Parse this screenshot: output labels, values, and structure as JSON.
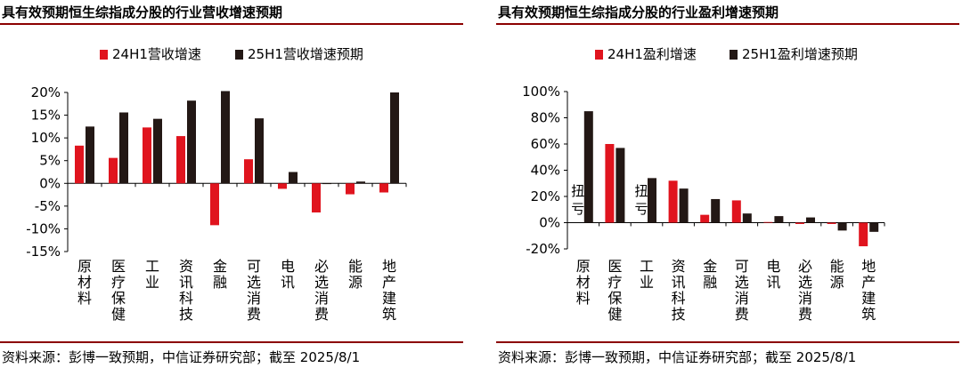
{
  "colors": {
    "h1_24": "#e0141e",
    "h1_25": "#231815",
    "rule": "#8b0000"
  },
  "left": {
    "title": "具有效预期恒生综指成分股的行业营收增速预期",
    "source": "资料来源：彭博一致预期，中信证券研究部；截至 2025/8/1"
  },
  "right": {
    "title": "具有效预期恒生综指成分股的行业盈利增速预期",
    "source": "资料来源：彭博一致预期，中信证券研究部；截至 2025/8/1"
  },
  "chart_data": [
    {
      "type": "bar",
      "categories": [
        "原材料",
        "医疗保健",
        "工业",
        "资讯科技",
        "金融",
        "可选消费",
        "电讯",
        "必选消费",
        "能源",
        "地产建筑"
      ],
      "series": [
        {
          "name": "24H1营收增速",
          "values": [
            8.3,
            5.6,
            12.3,
            10.4,
            -9.2,
            5.3,
            -1.2,
            -6.4,
            -2.4,
            -2.0
          ]
        },
        {
          "name": "25H1营收增速预期",
          "values": [
            12.5,
            15.6,
            14.2,
            18.2,
            20.3,
            14.3,
            2.5,
            0.0,
            0.4,
            20.0
          ]
        }
      ],
      "ylim": [
        -15,
        20
      ],
      "yticks": [
        -15,
        -10,
        -5,
        0,
        5,
        10,
        15,
        20
      ],
      "ytick_labels": [
        "-15%",
        "-10%",
        "-5%",
        "0%",
        "5%",
        "10%",
        "15%",
        "20%"
      ],
      "legend": "top",
      "grid": false,
      "annotations": []
    },
    {
      "type": "bar",
      "categories": [
        "原材料",
        "医疗保健",
        "工业",
        "资讯科技",
        "金融",
        "可选消费",
        "电讯",
        "必选消费",
        "能源",
        "地产建筑"
      ],
      "series": [
        {
          "name": "24H1盈利增速",
          "values": [
            null,
            60,
            null,
            32,
            6,
            17,
            0.5,
            -1,
            -1,
            -18
          ]
        },
        {
          "name": "25H1盈利增速预期",
          "values": [
            85,
            57,
            34,
            26,
            18,
            7,
            5,
            4,
            -6,
            -7
          ]
        }
      ],
      "ylim": [
        -20,
        100
      ],
      "yticks": [
        -20,
        0,
        20,
        40,
        60,
        80,
        100
      ],
      "ytick_labels": [
        "-20%",
        "0%",
        "20%",
        "40%",
        "60%",
        "80%",
        "100%"
      ],
      "legend": "top",
      "grid": false,
      "annotations": [
        {
          "category": "原材料",
          "text": "扭亏"
        },
        {
          "category": "工业",
          "text": "扭亏"
        }
      ]
    }
  ]
}
